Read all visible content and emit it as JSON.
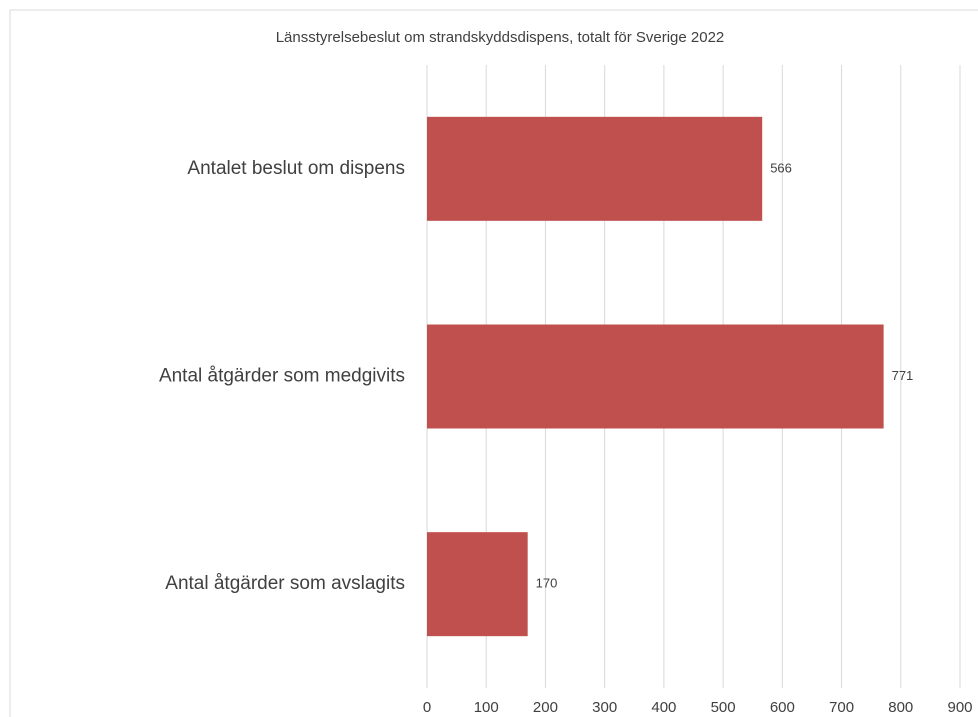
{
  "chart_data": {
    "type": "bar",
    "orientation": "horizontal",
    "title": "Länsstyrelsebeslut om strandskyddsdispens,  totalt för Sverige 2022",
    "categories": [
      "Antalet beslut om dispens",
      "Antal åtgärder som medgivits",
      "Antal åtgärder som avslagits"
    ],
    "values": [
      566,
      771,
      170
    ],
    "color": "#c0504d",
    "xlim": [
      0,
      900
    ],
    "xticks": [
      0,
      100,
      200,
      300,
      400,
      500,
      600,
      700,
      800,
      900
    ],
    "grid": true
  }
}
